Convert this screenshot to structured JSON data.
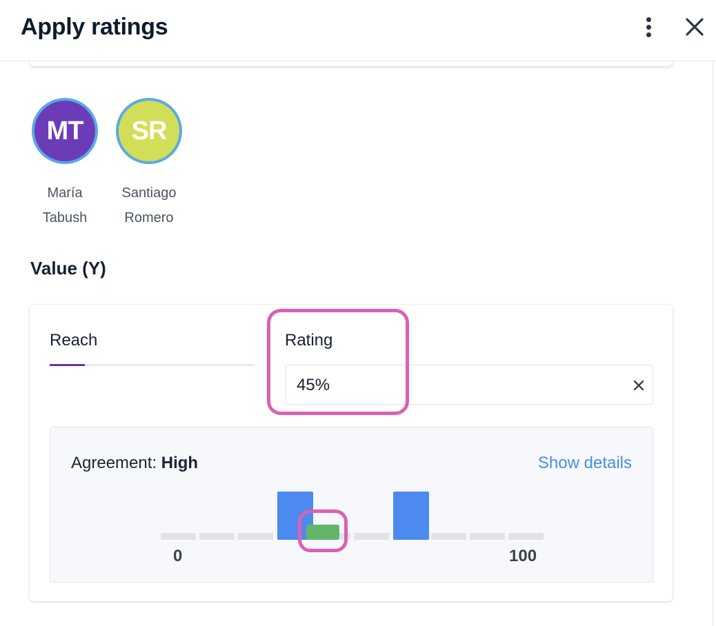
{
  "header": {
    "title": "Apply ratings",
    "more_icon": "kebab-vertical-icon",
    "close_icon": "close-icon"
  },
  "raters": [
    {
      "initials": "MT",
      "first": "María",
      "last": "Tabush",
      "color": "#6b3bb8"
    },
    {
      "initials": "SR",
      "first": "Santiago",
      "last": "Romero",
      "color": "#d2de57"
    }
  ],
  "section": {
    "title": "Value (Y)"
  },
  "criteria": {
    "tab_label": "Reach",
    "rating_label": "Rating",
    "rating_value": "45%",
    "clear_icon": "clear-x-icon"
  },
  "agreement": {
    "label": "Agreement:",
    "level": "High",
    "show_details": "Show details",
    "scale_min": "0",
    "scale_max": "100",
    "bins": 10,
    "rater_bins": [
      3,
      6
    ],
    "current_value": 45
  },
  "colors": {
    "accent_purple": "#6a2fb0",
    "link_blue": "#4a8de6",
    "bar_blue": "#4d8af0",
    "marker_green": "#63b56b",
    "highlight_pink": "#de5fb4"
  }
}
